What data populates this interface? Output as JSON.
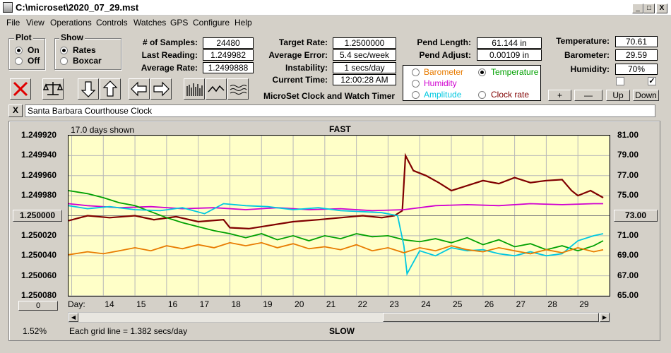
{
  "window": {
    "title": "C:\\microset\\2020_07_29.mst",
    "minimize": "_",
    "maximize": "□",
    "close": "X"
  },
  "menu": [
    "File",
    "View",
    "Operations",
    "Controls",
    "Watches",
    "GPS",
    "Configure",
    "Help"
  ],
  "plot_group": {
    "title": "Plot",
    "options": [
      "On",
      "Off"
    ],
    "selected": "On"
  },
  "show_group": {
    "title": "Show",
    "options": [
      "Rates",
      "Boxcar"
    ],
    "selected": "Rates"
  },
  "stats": {
    "samples_label": "# of Samples:",
    "samples": "24480",
    "last_reading_label": "Last Reading:",
    "last_reading": "1.249982",
    "average_rate_label": "Average Rate:",
    "average_rate": "1.2499888",
    "target_rate_label": "Target Rate:",
    "target_rate": "1.2500000",
    "average_error_label": "Average Error:",
    "average_error": "5.4 sec/week",
    "instability_label": "Instability:",
    "instability": "1 secs/day",
    "current_time_label": "Current Time:",
    "current_time": "12:00:28 AM",
    "pend_length_label": "Pend Length:",
    "pend_length": "61.144 in",
    "pend_adjust_label": "Pend Adjust:",
    "pend_adjust": "0.00109 in",
    "temperature_label": "Temperature:",
    "temperature": "70.61",
    "barometer_label": "Barometer:",
    "barometer": "29.59",
    "humidity_label": "Humidity:",
    "humidity": "70%"
  },
  "app_caption": "MicroSet Clock and Watch Timer",
  "series_selector": {
    "items": [
      {
        "label": "Barometer",
        "color": "#e87b00",
        "selected": false
      },
      {
        "label": "Temperature",
        "color": "#00a000",
        "selected": true
      },
      {
        "label": "Humidity",
        "color": "#d000d0",
        "selected": false
      },
      {
        "label": "Amplitude",
        "color": "#00c8e0",
        "selected": false
      },
      {
        "label": "Clock rate",
        "color": "#800000",
        "selected": false
      }
    ]
  },
  "scale_buttons": {
    "plus": "+",
    "minus": "—",
    "up": "Up",
    "down": "Down"
  },
  "checkboxes": {
    "left": "",
    "right": "✓"
  },
  "clock_name": "Santa Barbara Courthouse Clock",
  "clear_button": "X",
  "plot": {
    "days_shown": "17.0 days shown",
    "top_label": "FAST",
    "bottom_label": "SLOW",
    "grid_note": "Each grid line = 1.382 secs/day",
    "percent": "1.52%",
    "day_label": "Day:",
    "left_ref_button": "1.250000",
    "right_ref_button": "73.00",
    "zero_button": "0"
  },
  "chart_data": {
    "type": "line",
    "x_label": "Day",
    "x_ticks": [
      "14",
      "15",
      "16",
      "17",
      "18",
      "19",
      "20",
      "21",
      "22",
      "23",
      "24",
      "25",
      "26",
      "27",
      "28",
      "29"
    ],
    "y_left_ticks": [
      "1.249920",
      "1.249940",
      "1.249960",
      "1.249980",
      "",
      "1.250020",
      "1.250040",
      "1.250060",
      "1.250080"
    ],
    "y_left_range": [
      1.24992,
      1.25008
    ],
    "y_right_ticks": [
      "81.00",
      "79.00",
      "77.00",
      "75.00",
      "",
      "71.00",
      "69.00",
      "67.00",
      "65.00"
    ],
    "y_right_range": [
      65.0,
      81.0
    ],
    "x_range": [
      12.9,
      30.0
    ],
    "grid": true,
    "series": [
      {
        "name": "Clock rate",
        "color": "#800000",
        "x": [
          12.9,
          13.5,
          14.2,
          15.0,
          15.6,
          16.3,
          17.0,
          17.8,
          18.0,
          18.6,
          19.2,
          20.0,
          20.8,
          21.5,
          22.2,
          22.8,
          23.2,
          23.45,
          23.55,
          23.8,
          24.2,
          24.6,
          25.0,
          25.5,
          26.0,
          26.5,
          27.0,
          27.5,
          28.0,
          28.5,
          28.8,
          29.0,
          29.4,
          29.8
        ],
        "y": [
          72.5,
          73.0,
          72.8,
          73.0,
          72.6,
          72.9,
          72.4,
          72.6,
          71.8,
          71.7,
          72.0,
          72.4,
          72.6,
          72.8,
          73.0,
          72.8,
          73.0,
          73.5,
          79.0,
          77.5,
          77.0,
          76.3,
          75.5,
          76.0,
          76.5,
          76.2,
          76.8,
          76.3,
          76.5,
          76.6,
          75.5,
          75.0,
          75.5,
          74.8
        ]
      },
      {
        "name": "Humidity",
        "color": "#d000d0",
        "x": [
          12.9,
          13.5,
          14.5,
          15.5,
          16.5,
          17.5,
          18.5,
          19.5,
          20.5,
          21.5,
          22.5,
          23.5,
          24.5,
          25.5,
          26.5,
          27.5,
          28.5,
          29.5,
          29.8
        ],
        "y": [
          74.2,
          74.0,
          73.8,
          73.9,
          73.7,
          73.8,
          73.6,
          73.8,
          73.6,
          73.7,
          73.5,
          73.6,
          74.0,
          74.1,
          74.0,
          74.2,
          74.1,
          74.2,
          74.2
        ]
      },
      {
        "name": "Temperature",
        "color": "#00a000",
        "x": [
          12.9,
          13.5,
          14.0,
          14.5,
          15.0,
          15.5,
          16.0,
          16.5,
          17.0,
          17.5,
          18.0,
          18.5,
          19.0,
          19.5,
          20.0,
          20.5,
          21.0,
          21.5,
          22.0,
          22.5,
          23.0,
          23.5,
          24.0,
          24.5,
          25.0,
          25.5,
          26.0,
          26.5,
          27.0,
          27.5,
          28.0,
          28.5,
          29.0,
          29.5,
          29.8
        ],
        "y": [
          75.5,
          75.2,
          74.8,
          74.3,
          74.0,
          73.4,
          72.8,
          72.3,
          71.9,
          71.5,
          71.2,
          70.8,
          71.2,
          70.6,
          71.0,
          70.5,
          71.0,
          70.7,
          71.2,
          70.9,
          71.0,
          70.6,
          70.4,
          70.7,
          70.3,
          70.8,
          70.1,
          70.6,
          69.9,
          70.2,
          69.6,
          70.0,
          69.5,
          70.0,
          70.5
        ]
      },
      {
        "name": "Amplitude",
        "color": "#00c8e0",
        "x": [
          12.9,
          13.5,
          14.2,
          15.0,
          15.8,
          16.5,
          17.2,
          17.8,
          18.5,
          19.2,
          20.0,
          20.8,
          21.5,
          22.2,
          22.8,
          23.3,
          23.5,
          23.6,
          24.0,
          24.5,
          25.0,
          25.5,
          26.0,
          26.5,
          27.0,
          27.5,
          28.0,
          28.5,
          29.0,
          29.5,
          29.8
        ],
        "y": [
          74.0,
          73.7,
          73.9,
          73.6,
          73.5,
          73.8,
          73.2,
          74.2,
          74.0,
          73.9,
          73.6,
          73.8,
          73.5,
          73.4,
          73.3,
          73.0,
          70.0,
          67.2,
          69.5,
          69.0,
          69.8,
          69.5,
          69.6,
          69.2,
          69.0,
          69.4,
          69.0,
          69.2,
          70.5,
          71.0,
          71.2
        ]
      },
      {
        "name": "Barometer",
        "color": "#e87b00",
        "x": [
          12.9,
          13.5,
          14.0,
          14.5,
          15.0,
          15.5,
          16.0,
          16.5,
          17.0,
          17.5,
          18.0,
          18.5,
          19.0,
          19.5,
          20.0,
          20.5,
          21.0,
          21.5,
          22.0,
          22.5,
          23.0,
          23.5,
          24.0,
          24.5,
          25.0,
          25.5,
          26.0,
          26.5,
          27.0,
          27.5,
          28.0,
          28.5,
          29.0,
          29.5,
          29.8
        ],
        "y": [
          69.1,
          69.4,
          69.2,
          69.5,
          69.8,
          69.5,
          70.0,
          69.7,
          70.1,
          69.8,
          70.3,
          70.0,
          70.3,
          69.8,
          70.2,
          69.7,
          69.9,
          69.6,
          70.1,
          69.5,
          69.8,
          69.3,
          69.8,
          69.5,
          70.0,
          69.6,
          69.4,
          69.8,
          69.5,
          69.2,
          69.6,
          69.3,
          69.8,
          69.4,
          69.6
        ]
      }
    ]
  }
}
